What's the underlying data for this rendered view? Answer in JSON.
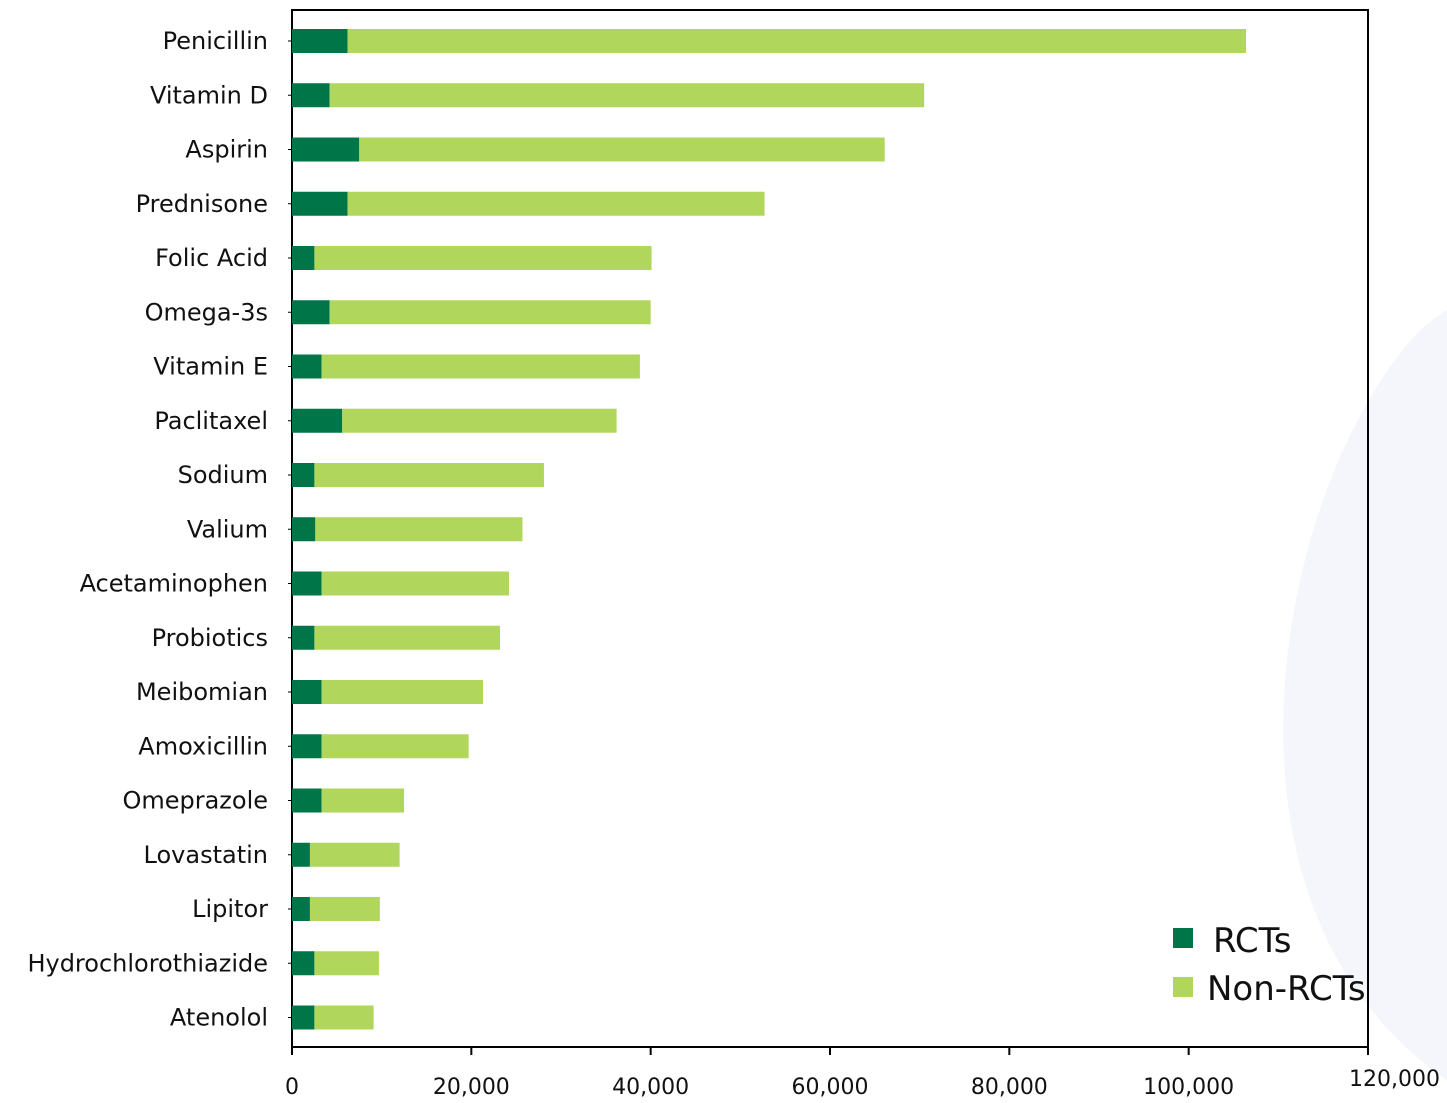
{
  "chart_data": {
    "type": "bar",
    "orientation": "horizontal",
    "stacked": true,
    "title": "",
    "xlabel": "",
    "ylabel": "",
    "xlim": [
      0,
      120000
    ],
    "x_ticks": [
      "0",
      "20,000",
      "40,000",
      "60,000",
      "80,000",
      "100,000",
      "120,000"
    ],
    "categories": [
      "Penicillin",
      "Vitamin D",
      "Aspirin",
      "Prednisone",
      "Folic Acid",
      "Omega-3s",
      "Vitamin E",
      "Paclitaxel",
      "Sodium",
      "Valium",
      "Acetaminophen",
      "Probiotics",
      "Meibomian",
      "Amoxicillin",
      "Omeprazole",
      "Lovastatin",
      "Lipitor",
      "Hydrochlorothiazide",
      "Atenolol"
    ],
    "series": [
      {
        "name": "RCTs",
        "color": "#007548",
        "values": [
          6200,
          4200,
          7500,
          6200,
          2500,
          4200,
          3300,
          5600,
          2500,
          2600,
          3300,
          2500,
          3300,
          3300,
          3300,
          2000,
          2000,
          2500,
          2500
        ]
      },
      {
        "name": "Non-RCTs",
        "color": "#b0d65c",
        "values": [
          100200,
          66300,
          58600,
          46500,
          37600,
          35800,
          35500,
          30600,
          25600,
          23100,
          20900,
          20700,
          18000,
          16400,
          9200,
          10000,
          7800,
          7200,
          6600
        ]
      }
    ],
    "grid": false,
    "legend": {
      "position": "bottom-right",
      "entries": [
        "RCTs",
        "Non-RCTs"
      ]
    }
  },
  "legend": {
    "rcts_label": "RCTs",
    "nonrcts_label": "Non-RCTs"
  }
}
